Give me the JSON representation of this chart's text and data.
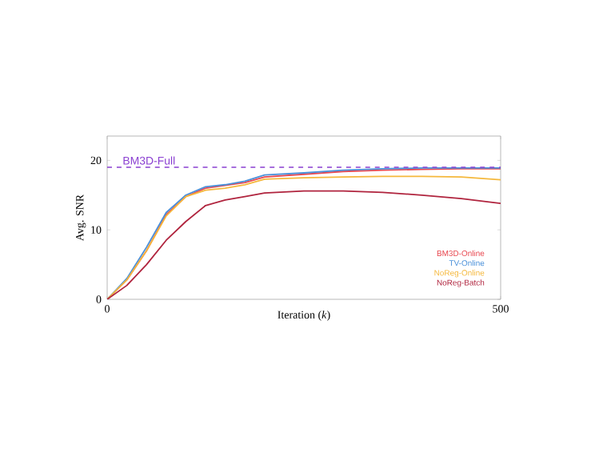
{
  "chart_data": {
    "type": "line",
    "xlabel": "Iteration (*k*)",
    "ylabel": "Avg. SNR",
    "x": [
      0,
      25,
      50,
      75,
      100,
      125,
      150,
      175,
      200,
      250,
      300,
      350,
      400,
      450,
      500
    ],
    "series": [
      {
        "name": "BM3D-Online",
        "color": "#e8474f",
        "values": [
          0,
          2.8,
          7,
          12.2,
          14.8,
          16,
          16.4,
          16.8,
          17.6,
          18,
          18.4,
          18.6,
          18.7,
          18.8,
          18.8
        ]
      },
      {
        "name": "TV-Online",
        "color": "#4a90d9",
        "values": [
          0,
          3,
          7.5,
          12.5,
          15,
          16.2,
          16.5,
          17,
          17.9,
          18.2,
          18.6,
          18.8,
          18.9,
          18.9,
          18.9
        ]
      },
      {
        "name": "NoReg-Online",
        "color": "#f5b83d",
        "values": [
          0,
          2.8,
          7,
          12,
          14.8,
          15.7,
          16,
          16.5,
          17.3,
          17.5,
          17.6,
          17.7,
          17.7,
          17.6,
          17.2
        ]
      },
      {
        "name": "NoReg-Batch",
        "color": "#b0243e",
        "values": [
          0,
          2,
          5,
          8.5,
          11.2,
          13.5,
          14.3,
          14.8,
          15.3,
          15.6,
          15.6,
          15.4,
          15,
          14.5,
          13.8
        ]
      }
    ],
    "ref_lines": [
      {
        "axis": "y",
        "value": 19,
        "label": "BM3D-Full",
        "color": "#8a3fd1",
        "line_style": "dashed"
      }
    ],
    "xlim": [
      0,
      500
    ],
    "xticks": [
      0,
      500
    ],
    "ylim": [
      0,
      23.5
    ],
    "yticks": [
      0,
      10,
      20
    ],
    "grid": false,
    "legend": "bottom right",
    "marker": "none",
    "line_style": "solid"
  }
}
